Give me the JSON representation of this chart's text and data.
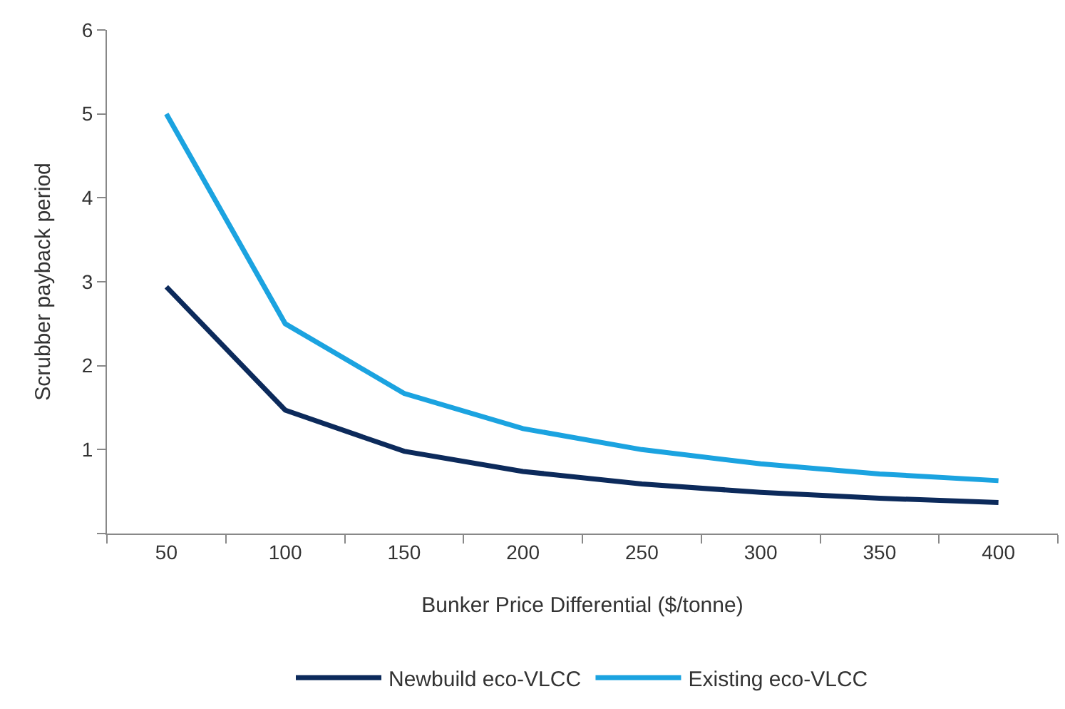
{
  "chart_data": {
    "type": "line",
    "xlabel": "Bunker Price Differential ($/tonne)",
    "ylabel": "Scrubber payback period",
    "categories": [
      "50",
      "100",
      "150",
      "200",
      "250",
      "300",
      "350",
      "400"
    ],
    "series": [
      {
        "name": "Newbuild eco-VLCC",
        "color": "#0c2a5b",
        "values": [
          2.94,
          1.47,
          0.98,
          0.74,
          0.59,
          0.49,
          0.42,
          0.37
        ]
      },
      {
        "name": "Existing eco-VLCC",
        "color": "#1ba3e0",
        "values": [
          5.0,
          2.5,
          1.67,
          1.25,
          1.0,
          0.83,
          0.71,
          0.63
        ]
      }
    ],
    "ylim": [
      0,
      6
    ],
    "yticks": [
      {
        "value": 0,
        "label": null
      },
      1,
      2,
      3,
      4,
      5,
      6
    ],
    "grid": false,
    "legend": "bottom",
    "marker": "none",
    "line_style": "solid"
  }
}
